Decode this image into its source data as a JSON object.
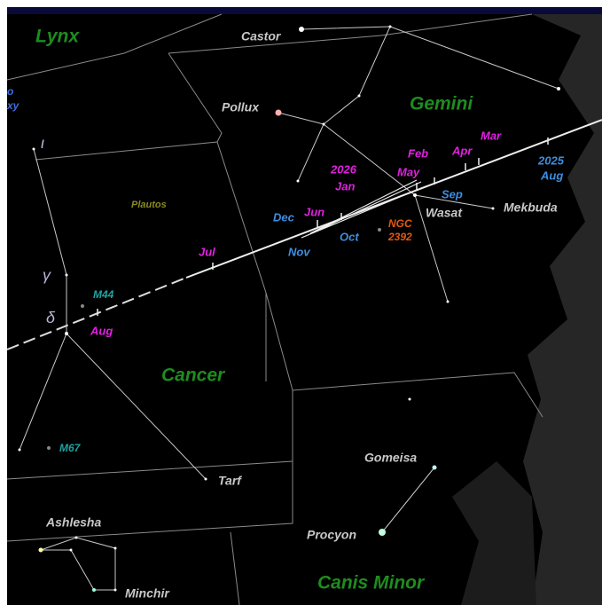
{
  "constellations": [
    "Lynx",
    "Gemini",
    "Cancer",
    "Canis Minor"
  ],
  "stars": [
    "Castor",
    "Pollux",
    "Mekbuda",
    "Wasat",
    "Tarf",
    "Ashlesha",
    "Minchir",
    "Procyon",
    "Gomeisa"
  ],
  "deep_sky": [
    "M44",
    "M67",
    "Plautos",
    "NGC",
    "2392"
  ],
  "greek": [
    "ι",
    "γ",
    "δ"
  ],
  "edge_labels": [
    "o",
    "xy"
  ],
  "path_dates_magenta": [
    "Mar",
    "Apr",
    "Feb",
    "May",
    "2026",
    "Jan",
    "Jun",
    "Jul",
    "Aug"
  ],
  "path_dates_blue": [
    "2025",
    "Aug",
    "Sep",
    "Dec",
    "Oct",
    "Nov"
  ]
}
